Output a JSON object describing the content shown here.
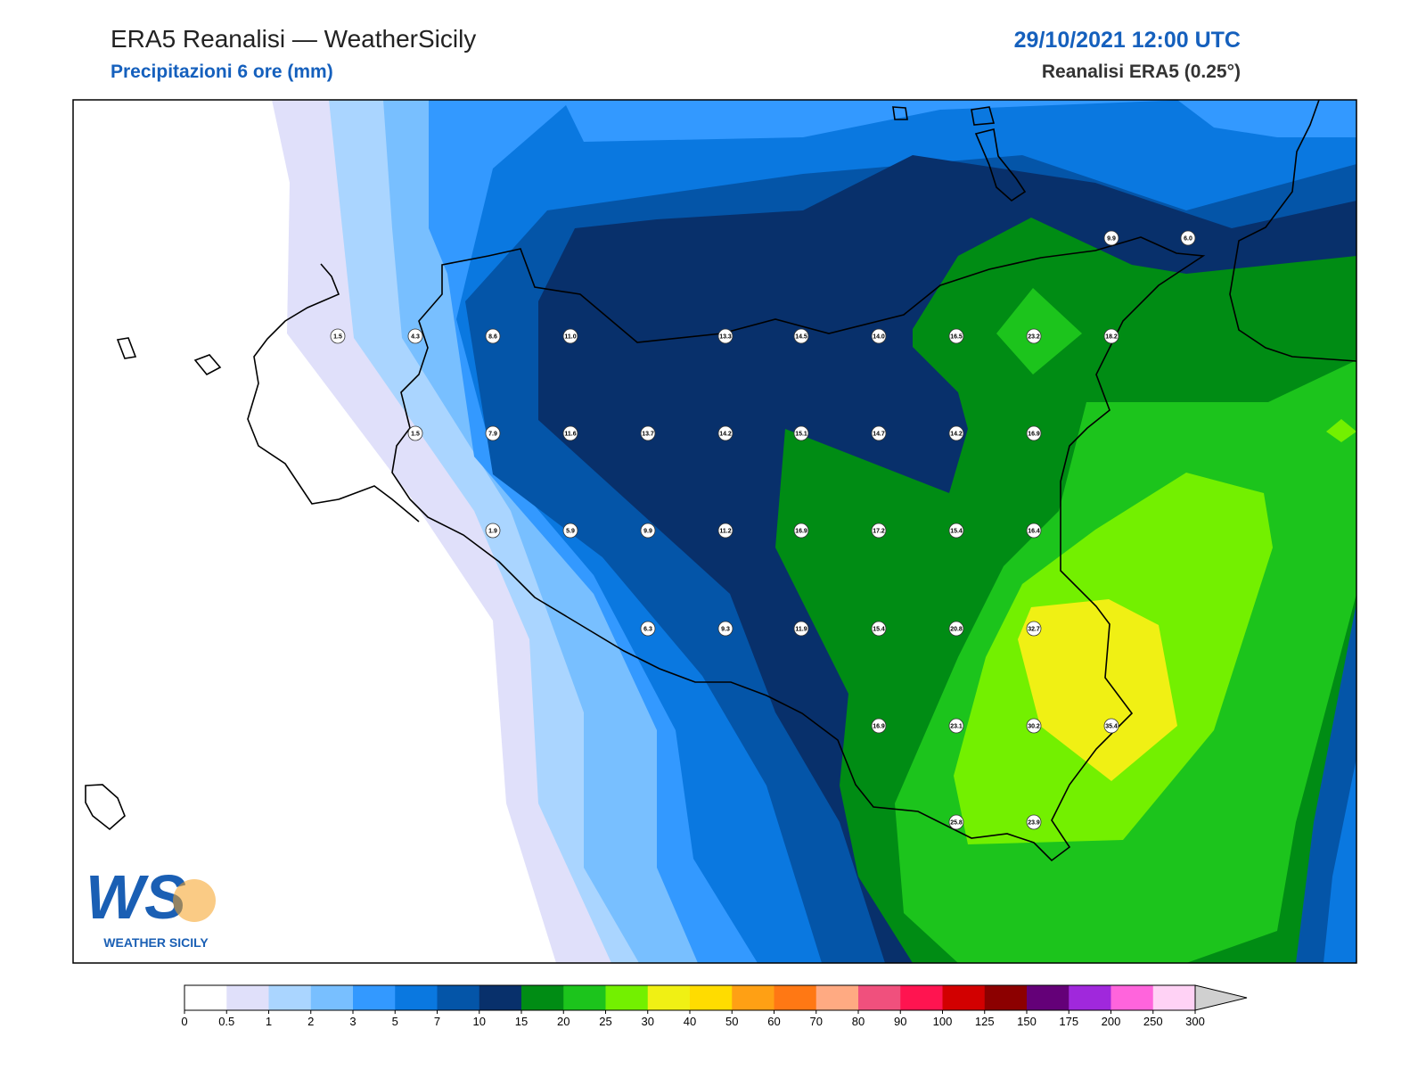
{
  "header": {
    "title": "ERA5 Reanalisi — WeatherSicily",
    "subtitle": "Precipitazioni 6 ore (mm)",
    "date": "29/10/2021 12:00 UTC",
    "source": "Reanalisi ERA5 (0.25°)"
  },
  "stations": [
    "9.9",
    "6.0",
    "1.5",
    "4.3",
    "8.6",
    "11.0",
    "13.3",
    "14.5",
    "14.0",
    "16.5",
    "23.2",
    "18.2",
    "1.5",
    "7.9",
    "11.6",
    "13.7",
    "14.2",
    "15.1",
    "14.7",
    "14.2",
    "16.9",
    "1.9",
    "5.9",
    "9.9",
    "11.2",
    "16.9",
    "17.2",
    "15.4",
    "16.4",
    "6.3",
    "9.3",
    "11.9",
    "15.4",
    "20.8",
    "32.7",
    "16.9",
    "23.1",
    "30.2",
    "35.4",
    "25.8",
    "23.9"
  ],
  "logo": {
    "mark": "WS",
    "name": "WEATHER SICILY"
  },
  "colorbar": {
    "ticks": [
      0,
      0.5,
      1,
      2,
      3,
      5,
      7,
      10,
      15,
      20,
      25,
      30,
      40,
      50,
      60,
      70,
      80,
      90,
      100,
      125,
      150,
      175,
      200,
      250,
      300
    ],
    "colors": [
      "#ffffff",
      "#e0e0fa",
      "#aad5ff",
      "#78bfff",
      "#3399ff",
      "#0a78e0",
      "#0455a8",
      "#08306b",
      "#008c14",
      "#1cc41c",
      "#73f000",
      "#f0f014",
      "#ffdc00",
      "#ffa014",
      "#ff7814",
      "#ffaa82",
      "#f0507d",
      "#ff1450",
      "#d20000",
      "#8c0000",
      "#640078",
      "#a028dc",
      "#ff64dc",
      "#ffd2f5"
    ],
    "extend_color": "#d0d0d0"
  }
}
